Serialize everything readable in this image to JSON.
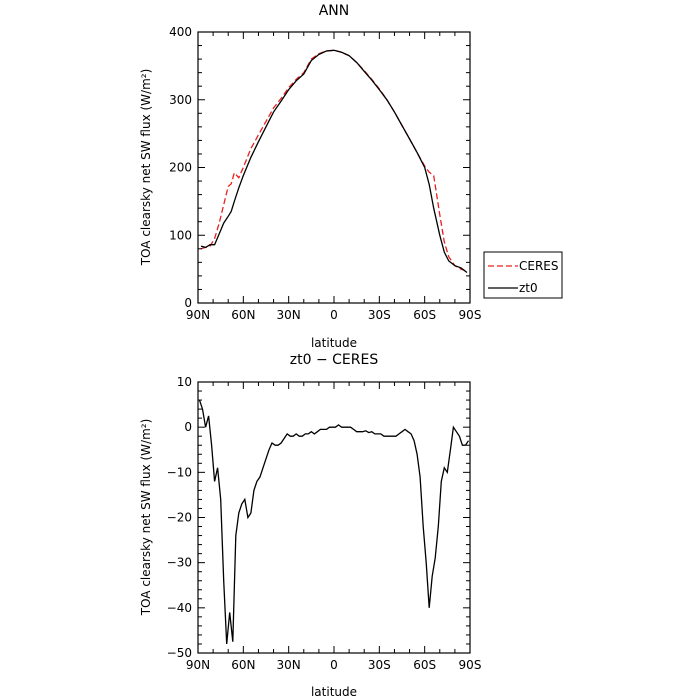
{
  "chart_data": [
    {
      "type": "line",
      "title": "ANN",
      "xlabel": "latitude",
      "ylabel": "TOA clearsky net SW flux (W/m²)",
      "xlim": [
        90,
        -90
      ],
      "ylim": [
        0,
        400
      ],
      "xticks": [
        90,
        60,
        30,
        0,
        -30,
        -60,
        -90
      ],
      "xtick_labels": [
        "90N",
        "60N",
        "30N",
        "0",
        "30S",
        "60S",
        "90S"
      ],
      "yticks": [
        0,
        100,
        200,
        300,
        400
      ],
      "ytick_labels": [
        "0",
        "100",
        "200",
        "300",
        "400"
      ],
      "legend_placement": "right",
      "series": [
        {
          "name": "CERES",
          "color": "#e8201e",
          "dash": "dashed",
          "x": [
            88,
            85,
            82,
            79,
            76,
            73,
            70,
            68,
            66,
            63,
            60,
            55,
            50,
            45,
            40,
            35,
            30,
            25,
            20,
            15,
            10,
            5,
            0,
            -5,
            -10,
            -15,
            -20,
            -25,
            -30,
            -35,
            -40,
            -45,
            -50,
            -55,
            -60,
            -63,
            -66,
            -70,
            -73,
            -76,
            -80,
            -84,
            -88
          ],
          "y": [
            80,
            82,
            84,
            95,
            118,
            145,
            172,
            176,
            192,
            185,
            200,
            228,
            248,
            268,
            288,
            302,
            318,
            330,
            340,
            360,
            368,
            372,
            373,
            370,
            365,
            355,
            343,
            330,
            316,
            300,
            282,
            262,
            242,
            222,
            202,
            193,
            188,
            130,
            90,
            68,
            55,
            50,
            47
          ]
        },
        {
          "name": "zt0",
          "color": "#000000",
          "dash": "solid",
          "x": [
            88,
            85,
            82,
            79,
            76,
            73,
            70,
            68,
            66,
            63,
            60,
            55,
            50,
            45,
            40,
            35,
            30,
            25,
            20,
            15,
            10,
            5,
            0,
            -5,
            -10,
            -15,
            -20,
            -25,
            -30,
            -35,
            -40,
            -45,
            -50,
            -55,
            -60,
            -63,
            -66,
            -70,
            -73,
            -76,
            -80,
            -84,
            -88
          ],
          "y": [
            84,
            82,
            86,
            86,
            102,
            118,
            128,
            135,
            150,
            170,
            188,
            215,
            238,
            260,
            282,
            298,
            315,
            328,
            338,
            358,
            367,
            372,
            373,
            370,
            365,
            355,
            342,
            329,
            315,
            300,
            282,
            262,
            242,
            222,
            200,
            175,
            140,
            100,
            75,
            62,
            55,
            52,
            45
          ]
        }
      ]
    },
    {
      "type": "line",
      "title": "zt0 − CERES",
      "xlabel": "latitude",
      "ylabel": "TOA clearsky net SW flux (W/m²)",
      "xlim": [
        90,
        -90
      ],
      "ylim": [
        -50,
        10
      ],
      "xticks": [
        90,
        60,
        30,
        0,
        -30,
        -60,
        -90
      ],
      "xtick_labels": [
        "90N",
        "60N",
        "30N",
        "0",
        "30S",
        "60S",
        "90S"
      ],
      "yticks": [
        -50,
        -40,
        -30,
        -20,
        -10,
        0,
        10
      ],
      "ytick_labels": [
        "−50",
        "−40",
        "−30",
        "−20",
        "−10",
        "0",
        "10"
      ],
      "series": [
        {
          "color": "#000000",
          "x": [
            89,
            87,
            85,
            83,
            81,
            79,
            77,
            75,
            73,
            71,
            69,
            67,
            65,
            63,
            61,
            59,
            57,
            55,
            53,
            51,
            49,
            47,
            45,
            43,
            41,
            39,
            37,
            35,
            33,
            31,
            29,
            27,
            25,
            23,
            21,
            19,
            17,
            15,
            13,
            11,
            9,
            7,
            5,
            3,
            1,
            -1,
            -3,
            -5,
            -7,
            -9,
            -11,
            -13,
            -15,
            -17,
            -19,
            -21,
            -23,
            -25,
            -27,
            -29,
            -31,
            -33,
            -35,
            -37,
            -39,
            -41,
            -43,
            -45,
            -47,
            -49,
            -51,
            -53,
            -55,
            -57,
            -59,
            -61,
            -63,
            -65,
            -67,
            -69,
            -71,
            -73,
            -75,
            -77,
            -79,
            -81,
            -83,
            -85,
            -87,
            -89
          ],
          "y": [
            6,
            4,
            0,
            2.5,
            -4,
            -12,
            -9,
            -16,
            -34,
            -48,
            -41,
            -47.5,
            -24,
            -19,
            -17,
            -16,
            -20,
            -19,
            -14,
            -12,
            -11,
            -9,
            -7,
            -5,
            -3.5,
            -4,
            -4,
            -3.5,
            -2.5,
            -1.5,
            -2,
            -2,
            -1.5,
            -2,
            -2,
            -1.5,
            -1.5,
            -1,
            -1.5,
            -1,
            -0.5,
            -0.5,
            -0.5,
            0,
            0,
            0,
            0.5,
            0,
            0,
            0,
            0,
            -0.5,
            -1,
            -1,
            -1,
            -0.8,
            -1.2,
            -1,
            -1.5,
            -1.5,
            -1.5,
            -2,
            -2,
            -2,
            -2,
            -2,
            -1.5,
            -1,
            -0.5,
            -1,
            -1.5,
            -3,
            -6,
            -11,
            -22,
            -30,
            -40,
            -33,
            -29,
            -22,
            -12,
            -9,
            -10,
            -5,
            0,
            -1,
            -2,
            -4,
            -4,
            -3
          ]
        }
      ]
    }
  ]
}
